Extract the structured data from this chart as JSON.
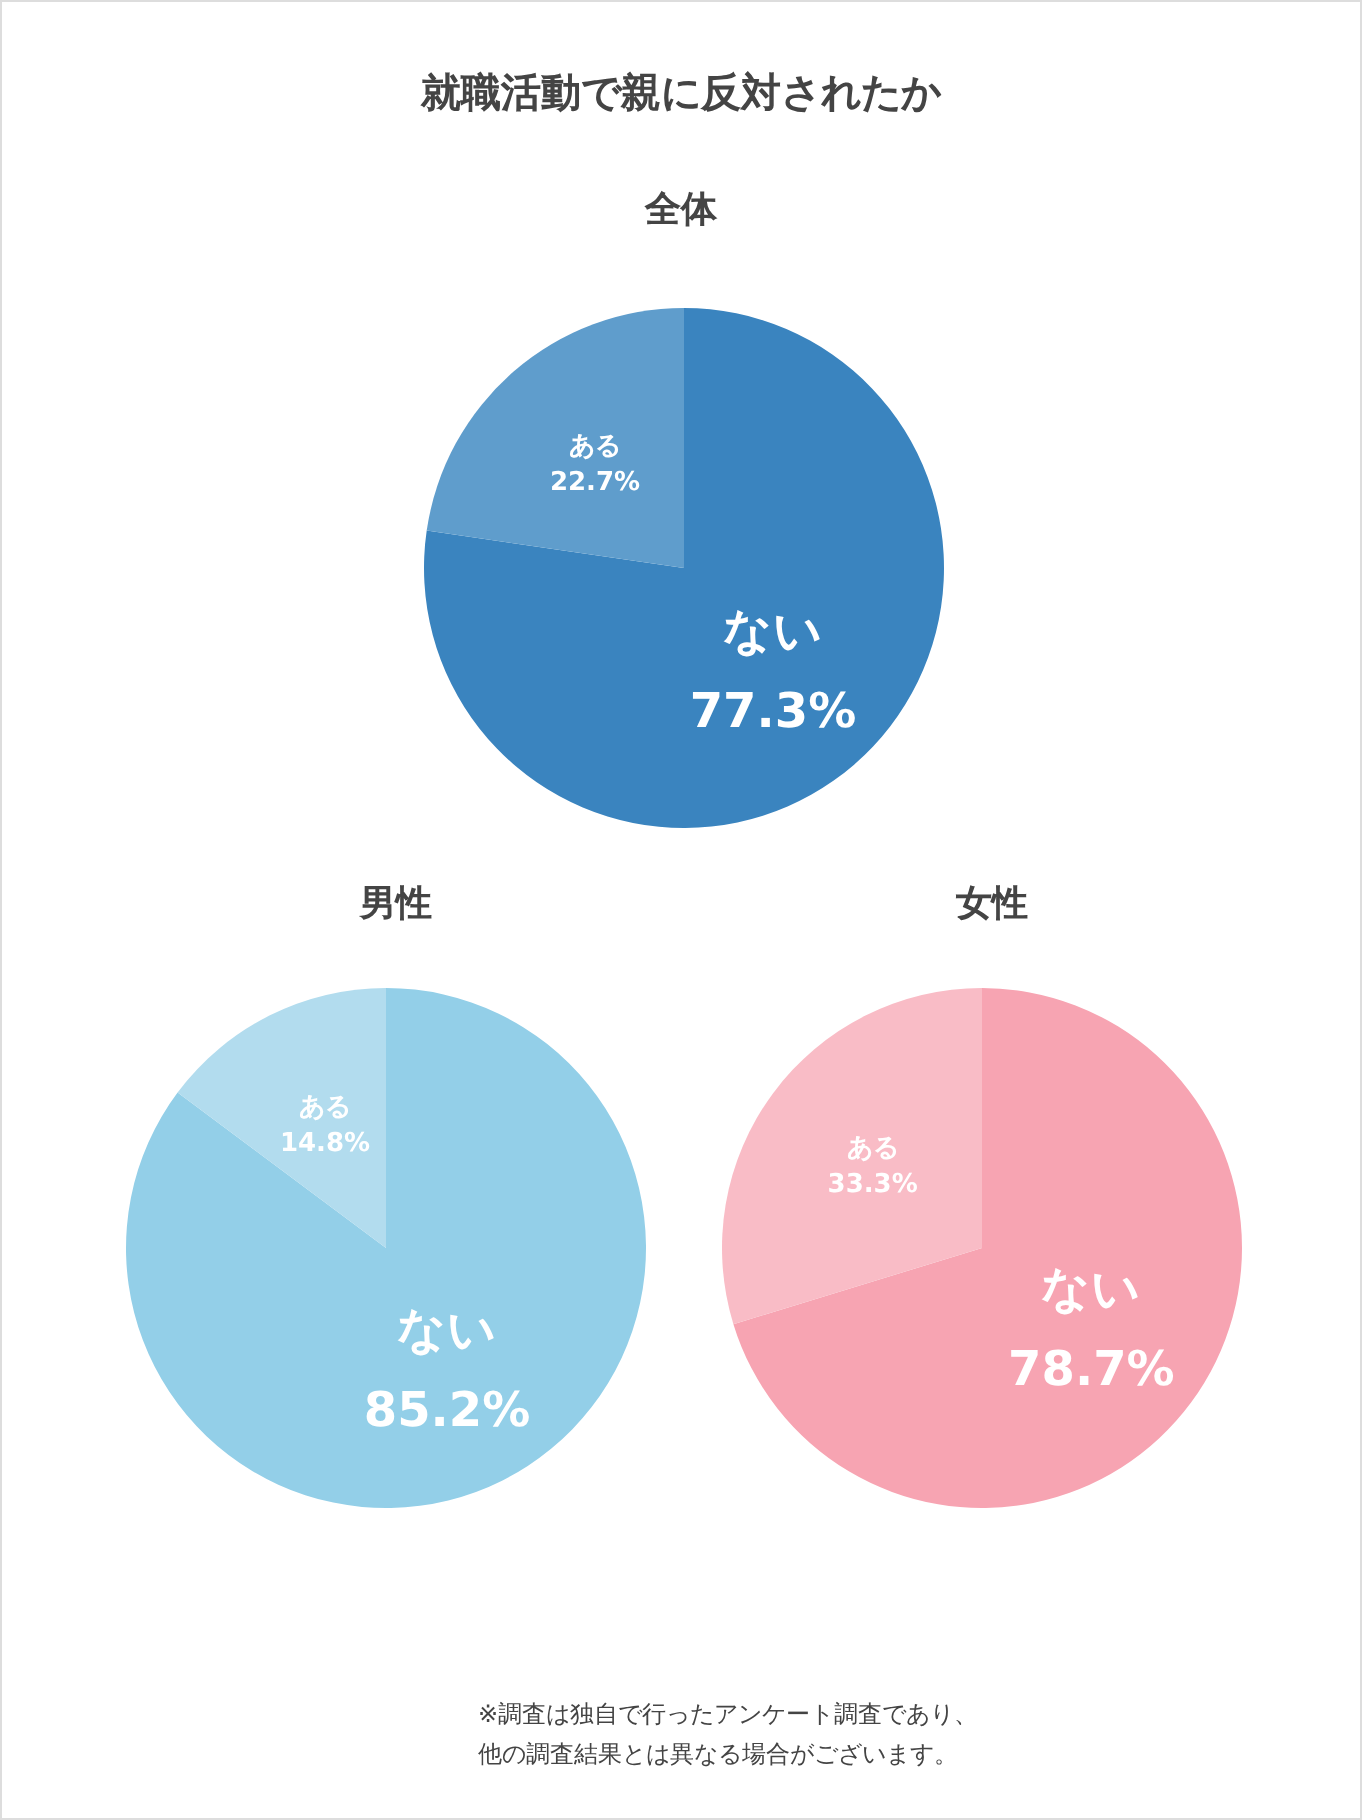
{
  "chart_data": [
    {
      "type": "pie",
      "title": "就職活動で親に反対されたか",
      "subtitle": "全体",
      "categories": [
        "ない",
        "ある"
      ],
      "values": [
        77.3,
        22.7
      ],
      "value_labels": [
        "77.3%",
        "22.7%"
      ],
      "colors": [
        "#3a84bf",
        "#5f9dcc"
      ]
    },
    {
      "type": "pie",
      "title": "男性",
      "categories": [
        "ない",
        "ある"
      ],
      "values": [
        85.2,
        14.8
      ],
      "value_labels": [
        "85.2%",
        "14.8%"
      ],
      "colors": [
        "#93cfe8",
        "#b2dcee"
      ]
    },
    {
      "type": "pie",
      "title": "女性",
      "categories": [
        "ない",
        "ある"
      ],
      "values": [
        78.7,
        33.3
      ],
      "value_labels": [
        "78.7%",
        "33.3%"
      ],
      "colors": [
        "#f7a4b2",
        "#f9bcc6"
      ],
      "annotations": [
        "※調査は独自で行ったアンケート調査であり、",
        "他の調査結果とは異なる場合がございます。"
      ]
    }
  ]
}
